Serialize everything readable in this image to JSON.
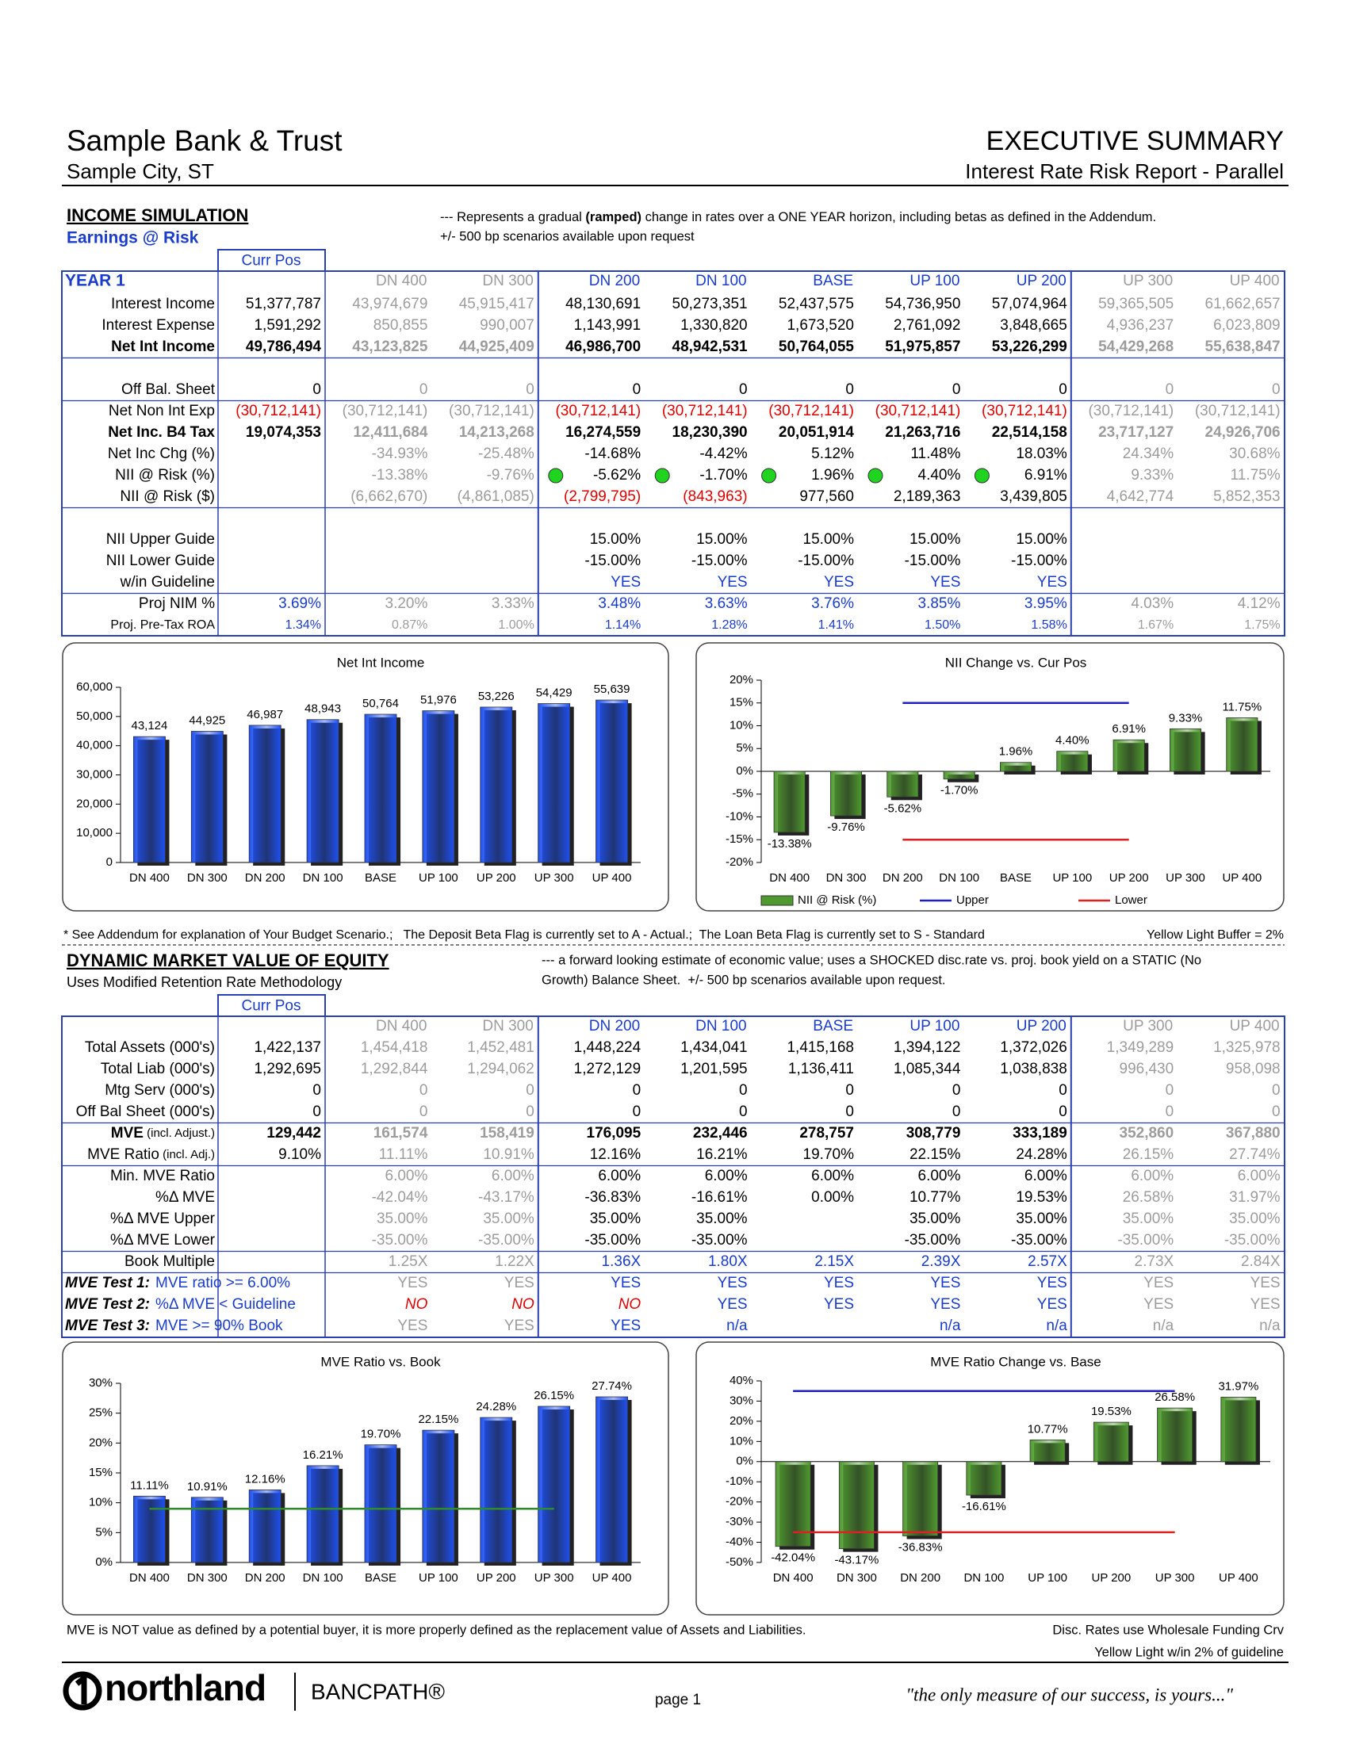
{
  "header": {
    "bank": "Sample Bank & Trust",
    "city": "Sample City, ST",
    "title": "EXECUTIVE SUMMARY",
    "report": "Interest Rate Risk Report - Parallel"
  },
  "income": {
    "heading": "INCOME SIMULATION",
    "subheading": "Earnings @ Risk",
    "note": [
      "--- Represents a gradual ",
      "(ramped)",
      " change in rates over a ONE YEAR horizon, including betas as defined in the Addendum."
    ],
    "note2": "+/- 500 bp scenarios available upon request",
    "table": {
      "curr_label": "Curr Pos",
      "year_label": "YEAR 1",
      "columns": [
        "DN 400",
        "DN 300",
        "DN 200",
        "DN 100",
        "BASE",
        "UP 100",
        "UP 200",
        "UP 300",
        "UP 400"
      ],
      "rows": [
        {
          "label": "Interest Income",
          "cells": [
            "51,377,787",
            "43,974,679",
            "45,915,417",
            "48,130,691",
            "50,273,351",
            "52,437,575",
            "54,736,950",
            "57,074,964",
            "59,365,505",
            "61,662,657"
          ]
        },
        {
          "label": "Interest Expense",
          "cells": [
            "1,591,292",
            "850,855",
            "990,007",
            "1,143,991",
            "1,330,820",
            "1,673,520",
            "2,761,092",
            "3,848,665",
            "4,936,237",
            "6,023,809"
          ]
        },
        {
          "label": "Net Int Income",
          "cells": [
            "49,786,494",
            "43,123,825",
            "44,925,409",
            "46,986,700",
            "48,942,531",
            "50,764,055",
            "51,975,857",
            "53,226,299",
            "54,429,268",
            "55,638,847"
          ]
        },
        {
          "label": "Off Bal. Sheet",
          "cells": [
            "0",
            "0",
            "0",
            "0",
            "0",
            "0",
            "0",
            "0",
            "0",
            "0"
          ]
        },
        {
          "label": "Net Non Int Exp",
          "cells": [
            "(30,712,141)",
            "(30,712,141)",
            "(30,712,141)",
            "(30,712,141)",
            "(30,712,141)",
            "(30,712,141)",
            "(30,712,141)",
            "(30,712,141)",
            "(30,712,141)",
            "(30,712,141)"
          ]
        },
        {
          "label": "Net Inc. B4 Tax",
          "cells": [
            "19,074,353",
            "12,411,684",
            "14,213,268",
            "16,274,559",
            "18,230,390",
            "20,051,914",
            "21,263,716",
            "22,514,158",
            "23,717,127",
            "24,926,706"
          ]
        },
        {
          "label": "Net Inc Chg (%)",
          "cells": [
            null,
            "-34.93%",
            "-25.48%",
            "-14.68%",
            "-4.42%",
            "5.12%",
            "11.48%",
            "18.03%",
            "24.34%",
            "30.68%"
          ]
        },
        {
          "label": "NII @ Risk (%)",
          "indicator_color": "#1fd31f",
          "cells": [
            null,
            "-13.38%",
            "-9.76%",
            "-5.62%",
            "-1.70%",
            "1.96%",
            "4.40%",
            "6.91%",
            "9.33%",
            "11.75%"
          ]
        },
        {
          "label": "NII @ Risk ($)",
          "cells": [
            null,
            "(6,662,670)",
            "(4,861,085)",
            "(2,799,795)",
            "(843,963)",
            "977,560",
            "2,189,363",
            "3,439,805",
            "4,642,774",
            "5,852,353"
          ]
        },
        {
          "label": "NII Upper Guide",
          "cells": [
            null,
            null,
            null,
            "15.00%",
            "15.00%",
            "15.00%",
            "15.00%",
            "15.00%",
            null,
            null
          ]
        },
        {
          "label": "NII Lower Guide",
          "cells": [
            null,
            null,
            null,
            "-15.00%",
            "-15.00%",
            "-15.00%",
            "-15.00%",
            "-15.00%",
            null,
            null
          ]
        },
        {
          "label": "w/in Guideline",
          "cells": [
            null,
            null,
            null,
            "YES",
            "YES",
            "YES",
            "YES",
            "YES",
            null,
            null
          ]
        },
        {
          "label": "Proj NIM %",
          "cells": [
            "3.69%",
            "3.20%",
            "3.33%",
            "3.48%",
            "3.63%",
            "3.76%",
            "3.85%",
            "3.95%",
            "4.03%",
            "4.12%"
          ]
        },
        {
          "label": "Proj. Pre-Tax ROA",
          "cells": [
            "1.34%",
            "0.87%",
            "1.00%",
            "1.14%",
            "1.28%",
            "1.41%",
            "1.50%",
            "1.58%",
            "1.67%",
            "1.75%"
          ]
        }
      ]
    }
  },
  "footnote": {
    "text": "* See Addendum for explanation of Your Budget Scenario.;   The Deposit Beta Flag is currently set to A - Actual.;  The Loan Beta Flag is currently set to S - Standard",
    "buffer": "Yellow Light Buffer = 2%"
  },
  "mve": {
    "heading": "DYNAMIC MARKET VALUE OF EQUITY",
    "subheading": "Uses Modified Retention Rate Methodology",
    "note": [
      "--- a forward looking estimate of economic value; uses a SHOCKED disc.rate vs. proj. book yield on a STATIC (No",
      "Growth) Balance Sheet.  +/- 500 bp scenarios available upon request."
    ],
    "table": {
      "curr_label": "Curr Pos",
      "columns": [
        "DN 400",
        "DN 300",
        "DN 200",
        "DN 100",
        "BASE",
        "UP 100",
        "UP 200",
        "UP 300",
        "UP 400"
      ],
      "rows": [
        {
          "label": "Total Assets (000's)",
          "cells": [
            "1,422,137",
            "1,454,418",
            "1,452,481",
            "1,448,224",
            "1,434,041",
            "1,415,168",
            "1,394,122",
            "1,372,026",
            "1,349,289",
            "1,325,978"
          ]
        },
        {
          "label": "Total Liab (000's)",
          "cells": [
            "1,292,695",
            "1,292,844",
            "1,294,062",
            "1,272,129",
            "1,201,595",
            "1,136,411",
            "1,085,344",
            "1,038,838",
            "996,430",
            "958,098"
          ]
        },
        {
          "label": "Mtg Serv (000's)",
          "cells": [
            "0",
            "0",
            "0",
            "0",
            "0",
            "0",
            "0",
            "0",
            "0",
            "0"
          ]
        },
        {
          "label": "Off Bal Sheet (000's)",
          "cells": [
            "0",
            "0",
            "0",
            "0",
            "0",
            "0",
            "0",
            "0",
            "0",
            "0"
          ]
        },
        {
          "label": "MVE",
          "label_note": " (incl. Adjust.)",
          "cells": [
            "129,442",
            "161,574",
            "158,419",
            "176,095",
            "232,446",
            "278,757",
            "308,779",
            "333,189",
            "352,860",
            "367,880"
          ]
        },
        {
          "label": "MVE Ratio",
          "label_note": " (incl. Adj.)",
          "cells": [
            "9.10%",
            "11.11%",
            "10.91%",
            "12.16%",
            "16.21%",
            "19.70%",
            "22.15%",
            "24.28%",
            "26.15%",
            "27.74%"
          ]
        },
        {
          "label": "Min. MVE Ratio",
          "cells": [
            null,
            "6.00%",
            "6.00%",
            "6.00%",
            "6.00%",
            "6.00%",
            "6.00%",
            "6.00%",
            "6.00%",
            "6.00%"
          ]
        },
        {
          "label": "%Δ MVE",
          "cells": [
            null,
            "-42.04%",
            "-43.17%",
            "-36.83%",
            "-16.61%",
            "0.00%",
            "10.77%",
            "19.53%",
            "26.58%",
            "31.97%"
          ]
        },
        {
          "label": "%Δ MVE Upper",
          "cells": [
            null,
            "35.00%",
            "35.00%",
            "35.00%",
            "35.00%",
            null,
            "35.00%",
            "35.00%",
            "35.00%",
            "35.00%"
          ]
        },
        {
          "label": "%Δ MVE Lower",
          "cells": [
            null,
            "-35.00%",
            "-35.00%",
            "-35.00%",
            "-35.00%",
            null,
            "-35.00%",
            "-35.00%",
            "-35.00%",
            "-35.00%"
          ]
        },
        {
          "label": "Book Multiple",
          "cells": [
            null,
            "1.25X",
            "1.22X",
            "1.36X",
            "1.80X",
            "2.15X",
            "2.39X",
            "2.57X",
            "2.73X",
            "2.84X"
          ]
        },
        {
          "label": "MVE Test 1:",
          "criterion": "MVE ratio >= 6.00%",
          "cells": [
            null,
            "YES",
            "YES",
            "YES",
            "YES",
            "YES",
            "YES",
            "YES",
            "YES",
            "YES"
          ]
        },
        {
          "label": "MVE Test 2:",
          "criterion": "%Δ MVE < Guideline",
          "cells": [
            null,
            "NO",
            "NO",
            "NO",
            "YES",
            "YES",
            "YES",
            "YES",
            "YES",
            "YES"
          ]
        },
        {
          "label": "MVE Test 3:",
          "criterion": "MVE >= 90% Book",
          "cells": [
            null,
            "YES",
            "YES",
            "YES",
            "n/a",
            null,
            "n/a",
            "n/a",
            "n/a",
            "n/a"
          ]
        }
      ]
    }
  },
  "chart_data": [
    {
      "type": "bar",
      "title": "Net Int Income",
      "categories": [
        "DN 400",
        "DN 300",
        "DN 200",
        "DN 100",
        "BASE",
        "UP 100",
        "UP 200",
        "UP 300",
        "UP 400"
      ],
      "series": [
        {
          "color": "#1e50f0",
          "values": [
            43124,
            44925,
            46987,
            48943,
            50764,
            51976,
            53226,
            54429,
            55639
          ],
          "value_labels": [
            "43,124",
            "44,925",
            "46,987",
            "48,943",
            "50,764",
            "51,976",
            "53,226",
            "54,429",
            "55,639"
          ]
        }
      ],
      "ylim": [
        0,
        60000
      ],
      "yticks": [
        0,
        {
          "value": 10000,
          "label": "10,000"
        },
        {
          "value": 20000,
          "label": "20,000"
        },
        {
          "value": 30000,
          "label": "30,000"
        },
        {
          "value": 40000,
          "label": "40,000"
        },
        {
          "value": 50000,
          "label": "50,000"
        },
        {
          "value": 60000,
          "label": "60,000"
        }
      ]
    },
    {
      "type": "bar",
      "title": "NII Change vs. Cur Pos",
      "categories": [
        "DN 400",
        "DN 300",
        "DN 200",
        "DN 100",
        "BASE",
        "UP 100",
        "UP 200",
        "UP 300",
        "UP 400"
      ],
      "series": [
        {
          "name": "NII @ Risk (%)",
          "color": "#4f9a2f",
          "values": [
            -13.38,
            -9.76,
            -5.62,
            -1.7,
            1.96,
            4.4,
            6.91,
            9.33,
            11.75
          ],
          "value_labels": [
            "-13.38%",
            "-9.76%",
            "-5.62%",
            "-1.70%",
            "1.96%",
            "4.40%",
            "6.91%",
            "9.33%",
            "11.75%"
          ]
        },
        {
          "name": "Upper",
          "type": "line",
          "color": "#1f1fbf",
          "values": [
            null,
            null,
            15,
            15,
            15,
            15,
            15,
            null,
            null
          ]
        },
        {
          "name": "Lower",
          "type": "line",
          "color": "#e02020",
          "values": [
            null,
            null,
            -15,
            -15,
            -15,
            -15,
            -15,
            null,
            null
          ]
        }
      ],
      "ylim": [
        -20,
        20
      ],
      "yticks": [
        {
          "value": -20,
          "label": "-20%"
        },
        {
          "value": -15,
          "label": "-15%"
        },
        {
          "value": -10,
          "label": "-10%"
        },
        {
          "value": -5,
          "label": "-5%"
        },
        {
          "value": 0,
          "label": "0%"
        },
        {
          "value": 5,
          "label": "5%"
        },
        {
          "value": 10,
          "label": "10%"
        },
        {
          "value": 15,
          "label": "15%"
        },
        {
          "value": 20,
          "label": "20%"
        }
      ]
    },
    {
      "type": "bar",
      "title": "MVE Ratio vs. Book",
      "categories": [
        "DN 400",
        "DN 300",
        "DN 200",
        "DN 100",
        "BASE",
        "UP 100",
        "UP 200",
        "UP 300",
        "UP 400"
      ],
      "series": [
        {
          "color": "#1e50f0",
          "values": [
            11.11,
            10.91,
            12.16,
            16.21,
            19.7,
            22.15,
            24.28,
            26.15,
            27.74
          ],
          "value_labels": [
            "11.11%",
            "10.91%",
            "12.16%",
            "16.21%",
            "19.70%",
            "22.15%",
            "24.28%",
            "26.15%",
            "27.74%"
          ]
        },
        {
          "type": "line",
          "color": "#2e8b2e",
          "values": [
            9,
            9,
            9,
            9,
            9,
            9,
            9,
            9,
            null
          ]
        }
      ],
      "ylim": [
        0,
        30
      ],
      "yticks": [
        {
          "value": 0,
          "label": "0%"
        },
        {
          "value": 5,
          "label": "5%"
        },
        {
          "value": 10,
          "label": "10%"
        },
        {
          "value": 15,
          "label": "15%"
        },
        {
          "value": 20,
          "label": "20%"
        },
        {
          "value": 25,
          "label": "25%"
        },
        {
          "value": 30,
          "label": "30%"
        }
      ]
    },
    {
      "type": "bar",
      "title": "MVE Ratio Change vs. Base",
      "categories": [
        "DN 400",
        "DN 300",
        "DN 200",
        "DN 100",
        "UP 100",
        "UP 200",
        "UP 300",
        "UP 400"
      ],
      "series": [
        {
          "color": "#4f9a2f",
          "values": [
            -42.04,
            -43.17,
            -36.83,
            -16.61,
            10.77,
            19.53,
            26.58,
            31.97
          ],
          "value_labels": [
            "-42.04%",
            "-43.17%",
            "-36.83%",
            "-16.61%",
            "10.77%",
            "19.53%",
            "26.58%",
            "31.97%"
          ]
        },
        {
          "type": "line",
          "color": "#1f1fbf",
          "values": [
            35,
            35,
            35,
            35,
            35,
            35,
            35,
            null
          ]
        },
        {
          "type": "line",
          "color": "#e02020",
          "values": [
            -35,
            -35,
            -35,
            -35,
            -35,
            -35,
            -35,
            null
          ]
        }
      ],
      "ylim": [
        -50,
        40
      ],
      "yticks": [
        {
          "value": -50,
          "label": "-50%"
        },
        {
          "value": -40,
          "label": "-40%"
        },
        {
          "value": -30,
          "label": "-30%"
        },
        {
          "value": -20,
          "label": "-20%"
        },
        {
          "value": -10,
          "label": "-10%"
        },
        {
          "value": 0,
          "label": "0%"
        },
        {
          "value": 10,
          "label": "10%"
        },
        {
          "value": 20,
          "label": "20%"
        },
        {
          "value": 30,
          "label": "30%"
        },
        {
          "value": 40,
          "label": "40%"
        }
      ]
    }
  ],
  "footer": {
    "disclaimer": "MVE is NOT value as defined by a potential buyer, it is more properly defined as the replacement value of Assets and Liabilities.",
    "disc_rates": "Disc. Rates use Wholesale Funding Crv",
    "yellow_light": "Yellow Light w/in 2% of guideline",
    "logo": "northland",
    "brand": "BANCPATH®",
    "page": "page 1",
    "slogan": "\"the only measure of our success, is yours...\""
  }
}
